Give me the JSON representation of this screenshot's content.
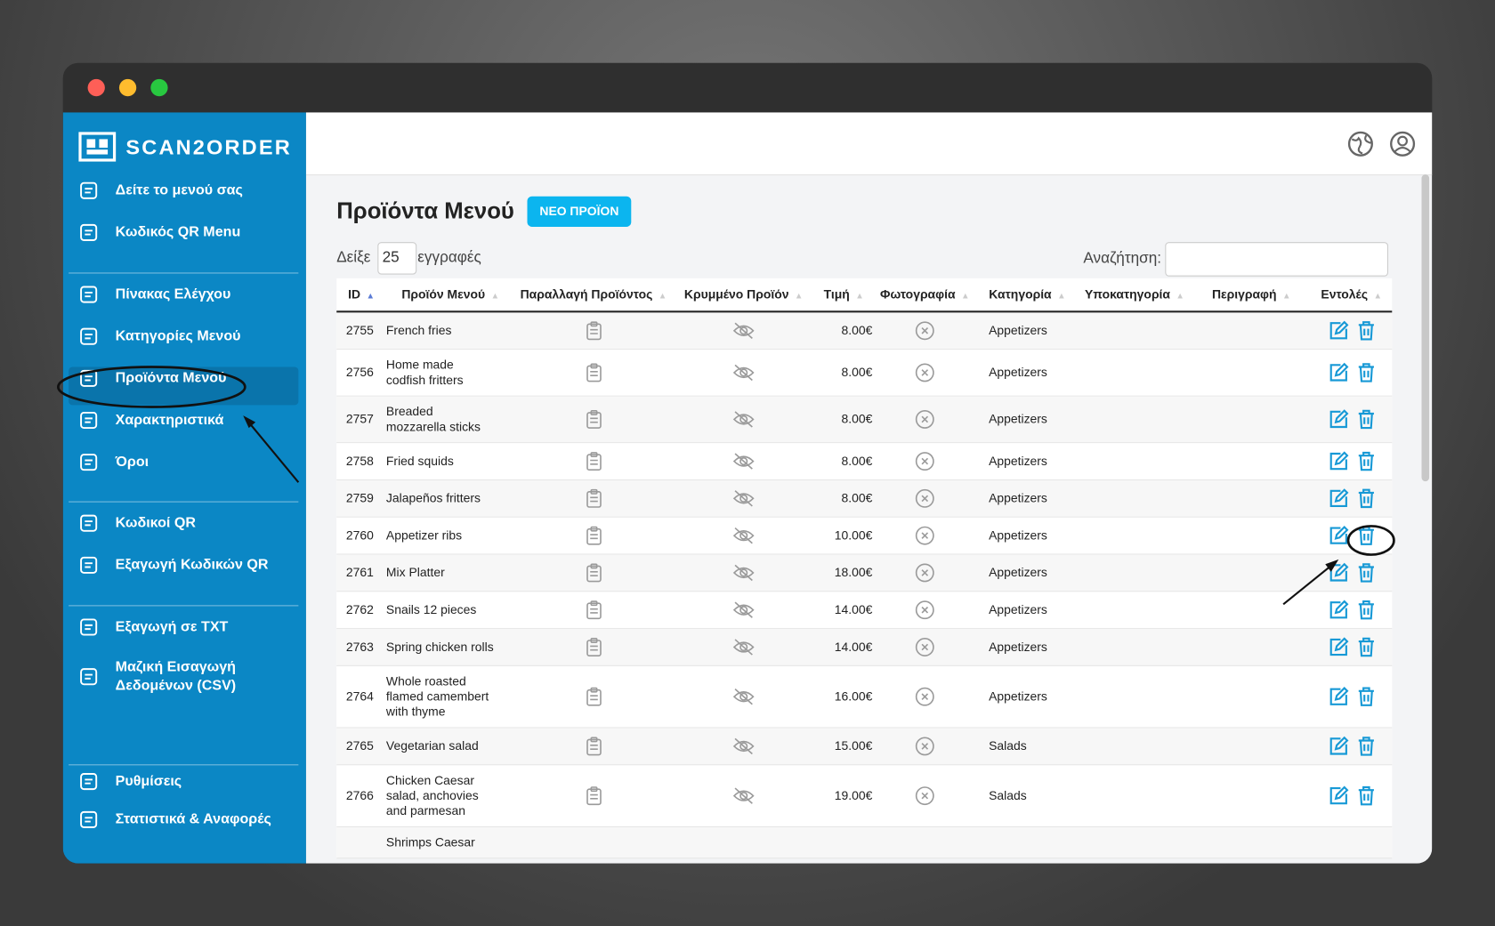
{
  "sidebar": {
    "brand": "SCAN2ORDER",
    "groups": [
      [
        "Δείτε το μενού σας",
        "Κωδικός QR Menu"
      ],
      [
        "Πίνακας Ελέγχου",
        "Κατηγορίες Μενού",
        "Προϊόντα Μενού",
        "Χαρακτηριστικά",
        "Όροι"
      ],
      [
        "Κωδικοί QR",
        "Εξαγωγή Κωδικών QR"
      ],
      [
        "Εξαγωγή σε TXT",
        "Μαζική Εισαγωγή Δεδομένων (CSV)"
      ],
      [
        "Ρυθμίσεις",
        "Στατιστικά & Αναφορές"
      ]
    ],
    "active": [
      1,
      2
    ]
  },
  "page": {
    "title": "Προϊόντα Μενού",
    "new_button": "ΝΕΟ ΠΡΟΪΟΝ",
    "show_label": "Δείξε",
    "page_size": "25",
    "entries_label": "εγγραφές",
    "search_label": "Αναζήτηση:"
  },
  "table": {
    "columns": [
      "ID",
      "Προϊόν Μενού",
      "Παραλλαγή Προϊόντος",
      "Κρυμμένο Προϊόν",
      "Τιμή",
      "Φωτογραφία",
      "Κατηγορία",
      "Υποκατηγορία",
      "Περιγραφή",
      "Εντολές"
    ],
    "rows": [
      [
        "2755",
        "French fries",
        "8.00€",
        "Appetizers"
      ],
      [
        "2756",
        "Home made codfish fritters",
        "8.00€",
        "Appetizers"
      ],
      [
        "2757",
        "Breaded mozzarella sticks",
        "8.00€",
        "Appetizers"
      ],
      [
        "2758",
        "Fried squids",
        "8.00€",
        "Appetizers"
      ],
      [
        "2759",
        "Jalapeños fritters",
        "8.00€",
        "Appetizers"
      ],
      [
        "2760",
        "Appetizer ribs",
        "10.00€",
        "Appetizers"
      ],
      [
        "2761",
        "Mix Platter",
        "18.00€",
        "Appetizers"
      ],
      [
        "2762",
        "Snails 12 pieces",
        "14.00€",
        "Appetizers"
      ],
      [
        "2763",
        "Spring chicken rolls",
        "14.00€",
        "Appetizers"
      ],
      [
        "2764",
        "Whole roasted flamed camembert with thyme",
        "16.00€",
        "Appetizers"
      ],
      [
        "2765",
        "Vegetarian salad",
        "15.00€",
        "Salads"
      ],
      [
        "2766",
        "Chicken Caesar salad, anchovies and parmesan",
        "19.00€",
        "Salads"
      ],
      [
        null,
        "Shrimps Caesar",
        null,
        null
      ]
    ]
  }
}
